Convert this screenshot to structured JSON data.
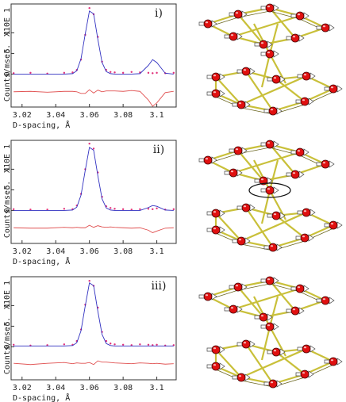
{
  "chart_data": [
    {
      "type": "line",
      "panel_label": "i)",
      "x_label": "D-spacing, Å",
      "y_label": "Counts/msec.",
      "y_multiplier": "X10E 1",
      "x": [
        3.015,
        3.025,
        3.035,
        3.045,
        3.05,
        3.0525,
        3.055,
        3.0575,
        3.06,
        3.0625,
        3.065,
        3.0675,
        3.07,
        3.0725,
        3.075,
        3.08,
        3.085,
        3.09,
        3.095,
        3.0975,
        3.1,
        3.105,
        3.11
      ],
      "series": [
        {
          "style": "points",
          "color": "#e0307a",
          "values": [
            0.02,
            0.03,
            0.01,
            0.03,
            0.04,
            0.1,
            0.35,
            0.95,
            1.6,
            1.45,
            0.9,
            0.3,
            0.1,
            0.05,
            0.04,
            0.03,
            0.05,
            0.04,
            0.03,
            0.02,
            0.03,
            0.02,
            0.03
          ]
        },
        {
          "style": "line",
          "color": "#3030c0",
          "values": [
            0,
            0,
            0,
            0,
            0.01,
            0.08,
            0.37,
            0.97,
            1.53,
            1.46,
            0.84,
            0.28,
            0.06,
            0.01,
            0,
            0,
            0,
            0.01,
            0.21,
            0.35,
            0.28,
            0.02,
            0
          ]
        },
        {
          "style": "line",
          "color": "#e05050",
          "values": [
            -0.43,
            -0.42,
            -0.44,
            -0.42,
            -0.42,
            -0.43,
            -0.47,
            -0.47,
            -0.38,
            -0.46,
            -0.39,
            -0.43,
            -0.41,
            -0.41,
            -0.41,
            -0.42,
            -0.4,
            -0.42,
            -0.63,
            -0.78,
            -0.7,
            -0.45,
            -0.42
          ]
        }
      ],
      "xlim": [
        3.0135,
        3.1115
      ],
      "xticks": [
        3.02,
        3.04,
        3.06,
        3.08,
        3.1
      ],
      "ylim": [
        -0.8,
        1.7
      ],
      "yticks": [
        0,
        {
          "value": 0.5,
          "label": ".5"
        },
        1
      ]
    },
    {
      "type": "line",
      "panel_label": "ii)",
      "x_label": "D-spacing, Å",
      "y_label": "Counts/msec.",
      "y_multiplier": "X10E 1",
      "x": [
        3.015,
        3.025,
        3.035,
        3.045,
        3.05,
        3.0525,
        3.055,
        3.0575,
        3.06,
        3.0625,
        3.065,
        3.0675,
        3.07,
        3.0725,
        3.075,
        3.08,
        3.085,
        3.09,
        3.095,
        3.0975,
        3.1,
        3.105,
        3.11
      ],
      "series": [
        {
          "style": "points",
          "color": "#e0307a",
          "values": [
            0.03,
            0.02,
            0.02,
            0.04,
            0.03,
            0.12,
            0.4,
            1.0,
            1.62,
            1.5,
            0.92,
            0.33,
            0.1,
            0.06,
            0.04,
            0.03,
            0.02,
            0.03,
            0.04,
            0.03,
            0.05,
            0.02,
            0.03
          ]
        },
        {
          "style": "line",
          "color": "#3030c0",
          "values": [
            0,
            0,
            0,
            0,
            0.01,
            0.08,
            0.37,
            0.97,
            1.53,
            1.46,
            0.84,
            0.28,
            0.06,
            0.01,
            0,
            0,
            0,
            0,
            0.07,
            0.12,
            0.1,
            0.01,
            0
          ]
        },
        {
          "style": "line",
          "color": "#e05050",
          "values": [
            -0.42,
            -0.43,
            -0.43,
            -0.41,
            -0.42,
            -0.41,
            -0.42,
            -0.42,
            -0.36,
            -0.41,
            -0.37,
            -0.4,
            -0.41,
            -0.4,
            -0.41,
            -0.42,
            -0.43,
            -0.42,
            -0.48,
            -0.54,
            -0.5,
            -0.43,
            -0.42
          ]
        }
      ],
      "xlim": [
        3.0135,
        3.1115
      ],
      "xticks": [
        3.02,
        3.04,
        3.06,
        3.08,
        3.1
      ],
      "ylim": [
        -0.8,
        1.7
      ],
      "yticks": [
        0,
        {
          "value": 0.5,
          "label": ".5"
        },
        1
      ]
    },
    {
      "type": "line",
      "panel_label": "iii)",
      "x_label": "D-spacing, Å",
      "y_label": "Counts/msec.",
      "y_multiplier": "X10E 1",
      "x": [
        3.015,
        3.025,
        3.035,
        3.045,
        3.05,
        3.0525,
        3.055,
        3.0575,
        3.06,
        3.0625,
        3.065,
        3.0675,
        3.07,
        3.0725,
        3.075,
        3.08,
        3.085,
        3.09,
        3.095,
        3.0975,
        3.1,
        3.105,
        3.11
      ],
      "series": [
        {
          "style": "points",
          "color": "#e0307a",
          "values": [
            0.05,
            0.03,
            0.04,
            0.06,
            0.05,
            0.14,
            0.42,
            1.02,
            1.6,
            1.48,
            0.95,
            0.36,
            0.14,
            0.08,
            0.06,
            0.05,
            0.04,
            0.06,
            0.05,
            0.04,
            0.05,
            0.03,
            0.04
          ]
        },
        {
          "style": "line",
          "color": "#3030c0",
          "values": [
            0.02,
            0.02,
            0.02,
            0.02,
            0.03,
            0.1,
            0.39,
            0.99,
            1.55,
            1.48,
            0.86,
            0.3,
            0.08,
            0.03,
            0.02,
            0.02,
            0.02,
            0.02,
            0.02,
            0.02,
            0.02,
            0.02,
            0.02
          ]
        },
        {
          "style": "line",
          "color": "#e05050",
          "values": [
            -0.4,
            -0.43,
            -0.4,
            -0.38,
            -0.41,
            -0.39,
            -0.4,
            -0.4,
            -0.38,
            -0.43,
            -0.34,
            -0.37,
            -0.37,
            -0.38,
            -0.39,
            -0.4,
            -0.41,
            -0.39,
            -0.4,
            -0.41,
            -0.4,
            -0.42,
            -0.41
          ]
        }
      ],
      "xlim": [
        3.0135,
        3.1115
      ],
      "xticks": [
        3.02,
        3.04,
        3.06,
        3.08,
        3.1
      ],
      "ylim": [
        -0.8,
        1.7
      ],
      "yticks": [
        0,
        {
          "value": 0.5,
          "label": ".5"
        },
        1
      ]
    }
  ]
}
